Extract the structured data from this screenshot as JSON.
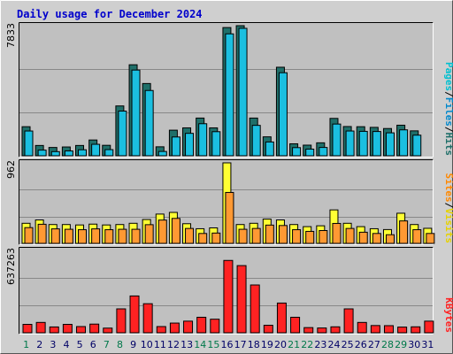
{
  "chart_data": {
    "type": "bar",
    "title": "Daily usage for December 2024",
    "categories": [
      "1",
      "2",
      "3",
      "4",
      "5",
      "6",
      "7",
      "8",
      "9",
      "10",
      "11",
      "12",
      "13",
      "14",
      "15",
      "16",
      "17",
      "18",
      "19",
      "20",
      "21",
      "22",
      "23",
      "24",
      "25",
      "26",
      "27",
      "28",
      "29",
      "30",
      "31"
    ],
    "weekend_days": [
      "1",
      "7",
      "8",
      "14",
      "15",
      "21",
      "22",
      "28",
      "29"
    ],
    "colors": {
      "pages": "#1f6f69",
      "files": "#1bbfe0",
      "hits": "#00bcd4",
      "visits": "#ffff33",
      "sites": "#ff9933",
      "kbytes": "#ff2222",
      "weekday_label": "#000066",
      "weekend_label": "#00784a",
      "title": "#0000cc",
      "background": "#cfcfcf"
    },
    "panels": [
      {
        "id": "hits",
        "ymax_label": "7833",
        "ylim": [
          0,
          7833
        ],
        "legend": [
          {
            "text": "Pages",
            "color": "#00c0d0"
          },
          {
            "text": "/",
            "color": "#000000"
          },
          {
            "text": "Files",
            "color": "#0088cc"
          },
          {
            "text": "/",
            "color": "#000000"
          },
          {
            "text": "Hits",
            "color": "#1f6f69"
          }
        ],
        "series": [
          {
            "name": "Pages",
            "role": "back",
            "color": "#1f6f69",
            "values": [
              1750,
              620,
              500,
              530,
              620,
              950,
              630,
              3000,
              5480,
              4350,
              540,
              1540,
              1680,
              2270,
              1680,
              7720,
              8000,
              2270,
              1140,
              5330,
              720,
              640,
              780,
              2250,
              1760,
              1750,
              1710,
              1640,
              1840,
              1500,
              0
            ]
          },
          {
            "name": "Hits",
            "role": "front",
            "color": "#1bbfe0",
            "values": [
              1650,
              500,
              410,
              450,
              520,
              850,
              530,
              2850,
              5320,
              4090,
              420,
              1290,
              1510,
              2090,
              1610,
              7500,
              7880,
              1990,
              990,
              5160,
              650,
              560,
              660,
              2070,
              1650,
              1630,
              1620,
              1540,
              1720,
              1400,
              0
            ]
          }
        ]
      },
      {
        "id": "visits",
        "ymax_label": "962",
        "ylim": [
          0,
          962
        ],
        "legend": [
          {
            "text": "Sites",
            "color": "#ff8800"
          },
          {
            "text": "/",
            "color": "#000000"
          },
          {
            "text": "Visits",
            "color": "#e6d200"
          }
        ],
        "series": [
          {
            "name": "Visits",
            "role": "back",
            "color": "#ffff33",
            "values": [
              240,
              280,
              225,
              225,
              220,
              230,
              220,
              225,
              240,
              285,
              350,
              370,
              235,
              175,
              185,
              970,
              225,
              240,
              290,
              280,
              225,
              200,
              210,
              400,
              240,
              200,
              175,
              165,
              360,
              225,
              180
            ]
          },
          {
            "name": "Sites",
            "role": "front",
            "color": "#ff9933",
            "values": [
              220,
              260,
              205,
              200,
              195,
              205,
              195,
              200,
              200,
              255,
              310,
              330,
              210,
              150,
              155,
              640,
              200,
              210,
              250,
              245,
              195,
              175,
              185,
              270,
              210,
              165,
              150,
              135,
              300,
              195,
              150
            ]
          }
        ]
      },
      {
        "id": "kbytes",
        "ymax_label": "637263",
        "ylim": [
          0,
          637263
        ],
        "legend": [
          {
            "text": "KBytes",
            "color": "#ff2222"
          }
        ],
        "series": [
          {
            "name": "KBytes",
            "role": "single",
            "color": "#ff2222",
            "values": [
              65000,
              80000,
              45000,
              65000,
              48000,
              67000,
              36000,
              185000,
              285000,
              225000,
              48000,
              75000,
              90000,
              120000,
              105000,
              560000,
              520000,
              370000,
              58000,
              230000,
              120000,
              40000,
              37000,
              46000,
              185000,
              80000,
              56000,
              55000,
              44000,
              46000,
              90000
            ]
          }
        ]
      }
    ]
  }
}
